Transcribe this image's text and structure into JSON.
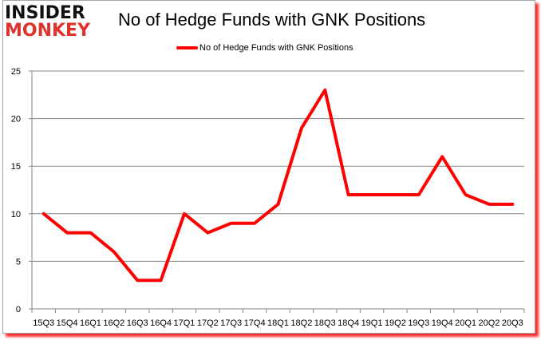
{
  "logo": {
    "line1": "INSIDER",
    "line2": "MONKEY"
  },
  "header": {
    "title": "No of Hedge Funds with GNK Positions"
  },
  "legend": {
    "label": "No of Hedge Funds with GNK Positions",
    "color": "#ff0000"
  },
  "chart_data": {
    "type": "line",
    "title": "No of Hedge Funds with GNK Positions",
    "xlabel": "",
    "ylabel": "",
    "categories": [
      "15Q3",
      "15Q4",
      "16Q1",
      "16Q2",
      "16Q3",
      "16Q4",
      "17Q1",
      "17Q2",
      "17Q3",
      "17Q4",
      "18Q1",
      "18Q2",
      "18Q3",
      "18Q4",
      "19Q1",
      "19Q2",
      "19Q3",
      "19Q4",
      "20Q1",
      "20Q2",
      "20Q3"
    ],
    "series": [
      {
        "name": "No of Hedge Funds with GNK Positions",
        "color": "#ff0000",
        "values": [
          10,
          8,
          8,
          6,
          3,
          3,
          10,
          8,
          9,
          9,
          11,
          19,
          23,
          12,
          12,
          12,
          12,
          16,
          12,
          11,
          11
        ]
      }
    ],
    "ylim": [
      0,
      25
    ],
    "yticks": [
      0,
      5,
      10,
      15,
      20,
      25
    ],
    "grid": true,
    "legend_position": "top"
  }
}
